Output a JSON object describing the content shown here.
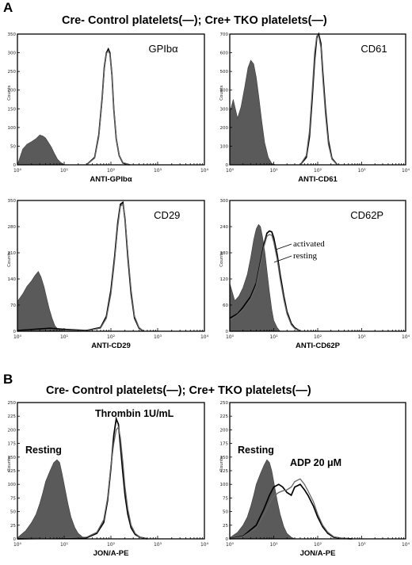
{
  "figure": {
    "panel_a_letter": "A",
    "panel_b_letter": "B",
    "header_a": "Cre- Control platelets(—); Cre+ TKO platelets(—)",
    "header_b": "Cre- Control platelets(—); Cre+ TKO platelets(—)",
    "line_colors": {
      "control": "#000000",
      "tko": "#666666",
      "fill": "#5a5a5a"
    }
  },
  "chart_data": [
    {
      "id": "gpib",
      "type": "area",
      "marker": "GPIbα",
      "xlabel": "ANTI-GPIbα",
      "ylabel": "Counts",
      "x_scale": "log",
      "xlim": [
        1,
        10000
      ],
      "ylim": [
        0,
        350
      ],
      "y_ticks": [
        0,
        50,
        100,
        150,
        200,
        250,
        300,
        350
      ],
      "x_tick_labels": [
        "10⁰",
        "10¹",
        "10²",
        "10³",
        "10⁴"
      ],
      "series": [
        {
          "kind": "filled",
          "x": [
            1,
            1.3,
            1.6,
            2,
            2.5,
            3,
            3.5,
            4,
            4.6,
            5.3,
            6.2,
            7.2,
            8.5,
            10,
            11
          ],
          "y": [
            0,
            42,
            55,
            62,
            70,
            80,
            77,
            72,
            60,
            48,
            30,
            15,
            6,
            1,
            0
          ]
        },
        {
          "kind": "line",
          "x": [
            30,
            45,
            55,
            65,
            72,
            80,
            88,
            95,
            105,
            115,
            130,
            150,
            180,
            250
          ],
          "y": [
            0,
            20,
            80,
            180,
            260,
            300,
            310,
            300,
            240,
            150,
            70,
            25,
            5,
            0
          ]
        },
        {
          "kind": "line2",
          "x": [
            30,
            45,
            55,
            65,
            72,
            80,
            88,
            95,
            105,
            115,
            130,
            150,
            180,
            250
          ],
          "y": [
            0,
            18,
            75,
            175,
            255,
            298,
            305,
            296,
            238,
            152,
            72,
            26,
            6,
            0
          ]
        }
      ]
    },
    {
      "id": "cd61",
      "type": "area",
      "marker": "CD61",
      "xlabel": "ANTI-CD61",
      "ylabel": "Counts",
      "x_scale": "log",
      "xlim": [
        1,
        10000
      ],
      "ylim": [
        0,
        700
      ],
      "y_ticks": [
        0,
        100,
        200,
        300,
        400,
        500,
        600,
        700
      ],
      "x_tick_labels": [
        "10⁰",
        "10¹",
        "10²",
        "10³",
        "10⁴"
      ],
      "series": [
        {
          "kind": "filled",
          "x": [
            1,
            1.2,
            1.5,
            1.8,
            2.2,
            2.6,
            3,
            3.5,
            4,
            4.6,
            5.3,
            6.2,
            7.5,
            9,
            11
          ],
          "y": [
            280,
            350,
            250,
            310,
            420,
            520,
            560,
            540,
            470,
            360,
            240,
            120,
            40,
            8,
            0
          ]
        },
        {
          "kind": "line",
          "x": [
            40,
            55,
            65,
            75,
            85,
            95,
            105,
            118,
            130,
            150,
            175,
            210,
            280
          ],
          "y": [
            0,
            40,
            150,
            360,
            560,
            680,
            700,
            650,
            500,
            300,
            130,
            35,
            0
          ]
        },
        {
          "kind": "line2",
          "x": [
            40,
            55,
            65,
            75,
            85,
            95,
            105,
            118,
            130,
            150,
            175,
            210,
            280
          ],
          "y": [
            0,
            50,
            180,
            400,
            600,
            690,
            690,
            630,
            470,
            270,
            110,
            30,
            0
          ]
        }
      ]
    },
    {
      "id": "cd29",
      "type": "area",
      "marker": "CD29",
      "xlabel": "ANTI-CD29",
      "ylabel": "Counts",
      "x_scale": "log",
      "xlim": [
        1,
        10000
      ],
      "ylim": [
        0,
        350
      ],
      "y_tick_labels": [
        "0",
        "70",
        "140",
        "210",
        "280",
        "350"
      ],
      "x_tick_labels": [
        "10⁰",
        "10¹",
        "10²",
        "10³",
        "10⁴"
      ],
      "series": [
        {
          "kind": "filled",
          "x": [
            1,
            1.3,
            1.6,
            2,
            2.4,
            2.8,
            3.2,
            3.7,
            4.2,
            4.8,
            5.5,
            6.3,
            7.3,
            8.5,
            10
          ],
          "y": [
            80,
            100,
            120,
            135,
            150,
            160,
            145,
            120,
            90,
            60,
            35,
            15,
            6,
            2,
            0
          ]
        },
        {
          "kind": "line",
          "x": [
            1,
            5,
            10,
            30,
            60,
            80,
            100,
            120,
            140,
            160,
            180,
            200,
            230,
            270,
            320,
            400,
            500
          ],
          "y": [
            2,
            8,
            5,
            2,
            10,
            40,
            110,
            200,
            290,
            340,
            345,
            300,
            200,
            100,
            35,
            8,
            0
          ]
        },
        {
          "kind": "line2",
          "x": [
            1,
            5,
            10,
            30,
            60,
            80,
            100,
            120,
            140,
            160,
            180,
            200,
            230,
            270,
            320,
            400,
            500
          ],
          "y": [
            0,
            4,
            3,
            1,
            8,
            35,
            100,
            190,
            280,
            335,
            340,
            305,
            210,
            110,
            40,
            10,
            0
          ]
        }
      ]
    },
    {
      "id": "cd62p",
      "type": "area",
      "marker": "CD62P",
      "xlabel": "ANTI-CD62P",
      "ylabel": "Counts",
      "x_scale": "log",
      "xlim": [
        1,
        10000
      ],
      "ylim": [
        0,
        300
      ],
      "y_tick_labels": [
        "0",
        "60",
        "120",
        "180",
        "240",
        "300"
      ],
      "x_tick_labels": [
        "10⁰",
        "10¹",
        "10²",
        "10³",
        "10⁴"
      ],
      "annotations": [
        "activated",
        "resting"
      ],
      "series": [
        {
          "kind": "filled",
          "x": [
            1,
            1.3,
            1.6,
            2,
            2.5,
            3,
            3.5,
            4,
            4.5,
            5,
            5.6,
            6.3,
            7,
            8,
            9,
            10,
            12,
            14
          ],
          "y": [
            110,
            70,
            80,
            100,
            130,
            170,
            210,
            235,
            245,
            240,
            215,
            180,
            140,
            90,
            50,
            25,
            8,
            0
          ]
        },
        {
          "kind": "line",
          "x": [
            1,
            1.5,
            2,
            3,
            4,
            5,
            6,
            7,
            8,
            9,
            10,
            12,
            14,
            17,
            20,
            25,
            30,
            40
          ],
          "y": [
            30,
            40,
            55,
            80,
            110,
            160,
            200,
            225,
            230,
            228,
            215,
            175,
            130,
            80,
            45,
            18,
            8,
            0
          ]
        },
        {
          "kind": "line2",
          "x": [
            1,
            1.5,
            2,
            3,
            4,
            5,
            6,
            7,
            8,
            9,
            10,
            12,
            14,
            17,
            20,
            25,
            30,
            40
          ],
          "y": [
            25,
            38,
            50,
            75,
            105,
            155,
            195,
            218,
            222,
            220,
            205,
            165,
            120,
            72,
            40,
            15,
            6,
            0
          ]
        }
      ]
    },
    {
      "id": "jona-thrombin",
      "type": "area",
      "xlabel": "JON/A-PE",
      "ylabel": "Counts",
      "x_scale": "log",
      "xlim": [
        1,
        10000
      ],
      "ylim": [
        0,
        250
      ],
      "y_ticks": [
        0,
        25,
        50,
        75,
        100,
        125,
        150,
        175,
        200,
        225,
        250
      ],
      "x_tick_labels": [
        "10⁰",
        "10¹",
        "10²",
        "10³",
        "10⁴"
      ],
      "annotations": [
        "Resting",
        "Thrombin 1U/mL"
      ],
      "series": [
        {
          "kind": "filled",
          "x": [
            1,
            1.5,
            2,
            2.5,
            3,
            3.5,
            4,
            5,
            6,
            7,
            8,
            9,
            10,
            12,
            14,
            17,
            20,
            25,
            30
          ],
          "y": [
            2,
            15,
            30,
            45,
            65,
            85,
            105,
            125,
            140,
            145,
            140,
            120,
            100,
            65,
            40,
            20,
            10,
            3,
            0
          ]
        },
        {
          "kind": "line",
          "x": [
            1,
            30,
            50,
            70,
            85,
            100,
            115,
            130,
            145,
            160,
            180,
            200,
            230,
            270,
            330,
            420,
            600
          ],
          "y": [
            0,
            2,
            10,
            30,
            70,
            130,
            190,
            220,
            210,
            170,
            120,
            80,
            45,
            20,
            8,
            3,
            0
          ]
        },
        {
          "kind": "line2",
          "x": [
            1,
            30,
            50,
            70,
            85,
            100,
            115,
            130,
            145,
            160,
            180,
            200,
            230,
            270,
            330,
            420,
            600
          ],
          "y": [
            0,
            3,
            12,
            35,
            75,
            135,
            175,
            200,
            205,
            185,
            140,
            95,
            55,
            25,
            10,
            3,
            0
          ]
        }
      ]
    },
    {
      "id": "jona-adp",
      "type": "area",
      "xlabel": "JON/A-PE",
      "ylabel": "Counts",
      "x_scale": "log",
      "xlim": [
        1,
        10000
      ],
      "ylim": [
        0,
        250
      ],
      "y_ticks": [
        0,
        25,
        50,
        75,
        100,
        125,
        150,
        175,
        200,
        225,
        250
      ],
      "x_tick_labels": [
        "10⁰",
        "10¹",
        "10²",
        "10³",
        "10⁴"
      ],
      "annotations": [
        "Resting",
        "ADP 20 μM"
      ],
      "series": [
        {
          "kind": "filled",
          "x": [
            1,
            1.5,
            2,
            2.5,
            3,
            3.5,
            4,
            5,
            6,
            7,
            8,
            9,
            10,
            12,
            14,
            17,
            20,
            25,
            30
          ],
          "y": [
            2,
            12,
            25,
            40,
            60,
            80,
            100,
            120,
            135,
            145,
            140,
            125,
            105,
            70,
            45,
            22,
            10,
            3,
            0
          ]
        },
        {
          "kind": "line",
          "x": [
            1,
            2,
            4,
            6,
            8,
            10,
            13,
            16,
            20,
            25,
            30,
            40,
            50,
            60,
            80,
            100,
            130,
            170,
            230,
            350,
            600
          ],
          "y": [
            0,
            5,
            25,
            55,
            80,
            95,
            100,
            95,
            85,
            80,
            95,
            100,
            90,
            80,
            60,
            40,
            22,
            10,
            3,
            1,
            0
          ]
        },
        {
          "kind": "line2",
          "x": [
            1,
            2,
            4,
            6,
            8,
            10,
            13,
            16,
            20,
            25,
            30,
            40,
            50,
            60,
            80,
            100,
            130,
            170,
            230,
            350,
            600
          ],
          "y": [
            0,
            4,
            20,
            45,
            65,
            78,
            85,
            88,
            90,
            95,
            105,
            110,
            100,
            88,
            68,
            45,
            25,
            12,
            4,
            1,
            0
          ]
        }
      ]
    }
  ]
}
